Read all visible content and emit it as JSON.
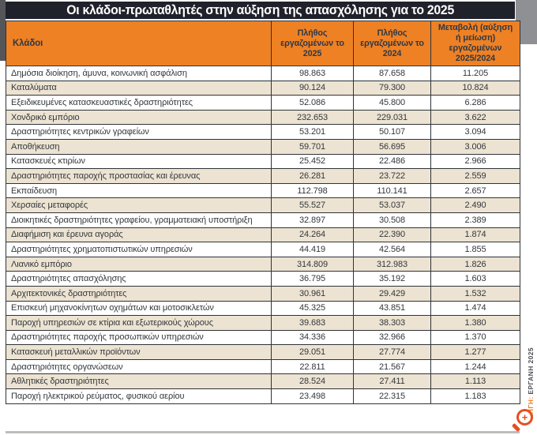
{
  "title": "Οι κλάδοι-πρωταθλητές στην αύξηση της απασχόλησης για το 2025",
  "source": {
    "label": "ΠΗΓΗ:",
    "value": "ΕΡΓΑΝΗ 2025"
  },
  "zoom_button": {
    "symbol": "+"
  },
  "colors": {
    "accent_orange": "#ee8124",
    "title_bar": "#1f222a",
    "row_beige": "#ece3d2",
    "border": "#2f3338",
    "magnifier_red": "#e64f1d"
  },
  "chart_data": {
    "type": "table",
    "title": "Οι κλάδοι-πρωταθλητές στην αύξηση της απασχόλησης για το 2025",
    "columns": [
      "Κλάδοι",
      "Πλήθος εργαζομένων το 2025",
      "Πλήθος εργαζομένων το 2024",
      "Μεταβολή (αύξηση ή μείωση) εργαζομένων 2025/2024"
    ],
    "rows": [
      [
        "Δημόσια διοίκηση, άμυνα, κοινωνική ασφάλιση",
        "98.863",
        "87.658",
        "11.205"
      ],
      [
        "Καταλύματα",
        "90.124",
        "79.300",
        "10.824"
      ],
      [
        "Εξειδικευμένες κατασκευαστικές δραστηριότητες",
        "52.086",
        "45.800",
        "6.286"
      ],
      [
        "Χονδρικό εμπόριο",
        "232.653",
        "229.031",
        "3.622"
      ],
      [
        "Δραστηριότητες κεντρικών γραφείων",
        "53.201",
        "50.107",
        "3.094"
      ],
      [
        "Αποθήκευση",
        "59.701",
        "56.695",
        "3.006"
      ],
      [
        "Κατασκευές κτιρίων",
        "25.452",
        "22.486",
        "2.966"
      ],
      [
        "Δραστηριότητες παροχής προστασίας και έρευνας",
        "26.281",
        "23.722",
        "2.559"
      ],
      [
        "Εκπαίδευση",
        "112.798",
        "110.141",
        "2.657"
      ],
      [
        "Χερσαίες μεταφορές",
        "55.527",
        "53.037",
        "2.490"
      ],
      [
        "Διοικητικές δραστηριότητες γραφείου, γραμματειακή υποστήριξη",
        "32.897",
        "30.508",
        "2.389"
      ],
      [
        "Διαφήμιση και έρευνα αγοράς",
        "24.264",
        "22.390",
        "1.874"
      ],
      [
        "Δραστηριότητες χρηματοπιστωτικών υπηρεσιών",
        "44.419",
        "42.564",
        "1.855"
      ],
      [
        "Λιανικό εμπόριο",
        "314.809",
        "312.983",
        "1.826"
      ],
      [
        "Δραστηριότητες απασχόλησης",
        "36.795",
        "35.192",
        "1.603"
      ],
      [
        "Αρχιτεκτονικές δραστηριότητες",
        "30.961",
        "29.429",
        "1.532"
      ],
      [
        "Επισκευή μηχανοκίνητων οχημάτων και μοτοσικλετών",
        "45.325",
        "43.851",
        "1.474"
      ],
      [
        "Παροχή υπηρεσιών σε κτίρια και εξωτερικούς χώρους",
        "39.683",
        "38.303",
        "1.380"
      ],
      [
        "Δραστηριότητες παροχής προσωπικών υπηρεσιών",
        "34.336",
        "32.966",
        "1.370"
      ],
      [
        "Κατασκευή μεταλλικών προϊόντων",
        "29.051",
        "27.774",
        "1.277"
      ],
      [
        "Δραστηριότητες οργανώσεων",
        "22.811",
        "21.567",
        "1.244"
      ],
      [
        "Αθλητικές δραστηριότητες",
        "28.524",
        "27.411",
        "1.113"
      ],
      [
        "Παροχή ηλεκτρικού ρεύματος, φυσικού αερίου",
        "23.498",
        "22.315",
        "1.183"
      ]
    ]
  }
}
